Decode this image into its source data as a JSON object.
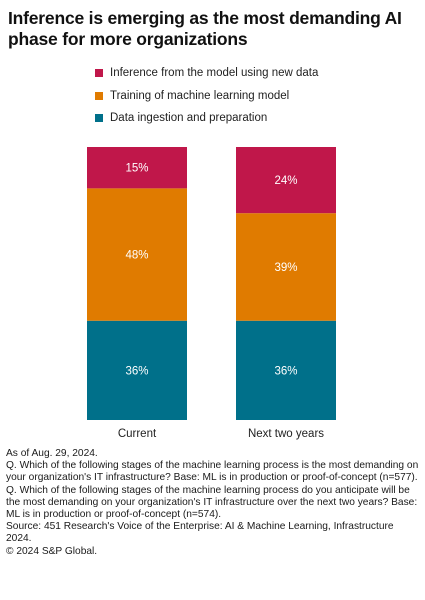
{
  "title": "Inference is emerging as the most demanding AI phase for more organizations",
  "legend": [
    {
      "label": "Inference from the model using new data",
      "color": "#c0174a"
    },
    {
      "label": "Training of machine learning model",
      "color": "#e07b00"
    },
    {
      "label": "Data ingestion and preparation",
      "color": "#00708a"
    }
  ],
  "chart_data": {
    "type": "bar",
    "stacked": true,
    "categories": [
      "Current",
      "Next two years"
    ],
    "series": [
      {
        "name": "Data ingestion and preparation",
        "values": [
          36,
          36
        ],
        "labels": [
          "36%",
          "36%"
        ],
        "color": "#00708a"
      },
      {
        "name": "Training of machine learning model",
        "values": [
          48,
          39
        ],
        "labels": [
          "48%",
          "39%"
        ],
        "color": "#e07b00"
      },
      {
        "name": "Inference from the model using new data",
        "values": [
          15,
          24
        ],
        "labels": [
          "15%",
          "24%"
        ],
        "color": "#c0174a"
      }
    ],
    "legend_position": "top"
  },
  "notes": [
    "As of Aug. 29, 2024.",
    "Q. Which of the following stages of the machine learning process is the most demanding on your organization's IT infrastructure? Base: ML is in production or proof-of-concept (n=577).",
    "Q. Which of the following stages of the machine learning process do you anticipate will be the most demanding on your organization's IT infrastructure over the next two years? Base: ML is in production or proof-of-concept (n=574).",
    "Source: 451 Research's Voice of the Enterprise: AI & Machine Learning, Infrastructure 2024.",
    "© 2024 S&P Global."
  ]
}
